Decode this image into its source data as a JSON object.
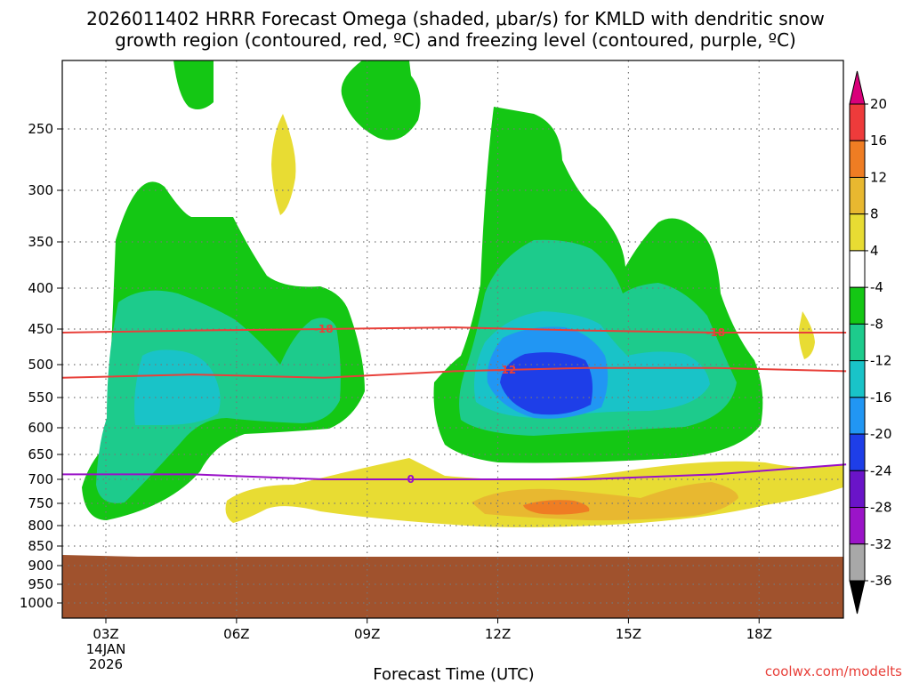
{
  "chart_data": {
    "type": "contour",
    "title_line1": "2026011402 HRRR Forecast Omega (shaded, μbar/s) for KMLD with dendritic snow",
    "title_line2": "growth region (contoured, red, ºC) and freezing level (contoured, purple, ºC)",
    "xlabel": "Forecast Time (UTC)",
    "ylabel": "",
    "credit": "coolwx.com/modelts",
    "x_ticks": [
      "03Z",
      "06Z",
      "09Z",
      "12Z",
      "15Z",
      "18Z"
    ],
    "x_hours": [
      3,
      6,
      9,
      12,
      15,
      18
    ],
    "x_range_hours": [
      2,
      20
    ],
    "date_label_day": "14JAN",
    "date_label_year": "2026",
    "y_ticks": [
      250,
      300,
      350,
      400,
      450,
      500,
      550,
      600,
      650,
      700,
      750,
      800,
      850,
      900,
      950,
      1000
    ],
    "y_tick_labels": [
      "250",
      "300",
      "350",
      "400",
      "450",
      "500",
      "550",
      "600",
      "650",
      "700",
      "750",
      "800",
      "850",
      "900",
      "950",
      "1000"
    ],
    "y_range_hpa": [
      200,
      1030
    ],
    "colorbar_labels": [
      "20",
      "16",
      "12",
      "8",
      "4",
      "-4",
      "-8",
      "-12",
      "-16",
      "-20",
      "-24",
      "-28",
      "-32",
      "-36"
    ],
    "colorbar_colors": [
      "#d9007a",
      "#ee3b3b",
      "#ef7d23",
      "#e8b830",
      "#e8dc33",
      "#ffffff",
      "#14c714",
      "#1dcb8c",
      "#19c3c8",
      "#2196f3",
      "#1e3ee8",
      "#6a14c8",
      "#9b14c8",
      "#a8a8a8",
      "#000000"
    ],
    "contours": [
      {
        "name": "dendritic-minus-18",
        "label": "-18",
        "color": "#e8403a",
        "levels_hpa": [
          455,
          452,
          450,
          448,
          452,
          455,
          455
        ]
      },
      {
        "name": "dendritic-minus-12",
        "label": "-12",
        "color": "#e8403a",
        "levels_hpa": [
          520,
          515,
          520,
          510,
          505,
          505,
          510
        ]
      },
      {
        "name": "freezing-level-0",
        "label": "0",
        "color": "#9a10c8",
        "levels_hpa": [
          690,
          690,
          700,
          700,
          700,
          690,
          670
        ]
      }
    ],
    "omega_regions": [
      {
        "name": "early-ascent",
        "peak_value": -16,
        "hour_span": [
          2.5,
          9
        ]
      },
      {
        "name": "midday-ascent",
        "peak_value": -24,
        "hour_span": [
          10.5,
          18
        ]
      },
      {
        "name": "low-level-descent",
        "peak_value": 12,
        "hour_span": [
          6,
          20
        ]
      }
    ],
    "terrain_color": "#a0522d",
    "surface_hpa": 870
  }
}
